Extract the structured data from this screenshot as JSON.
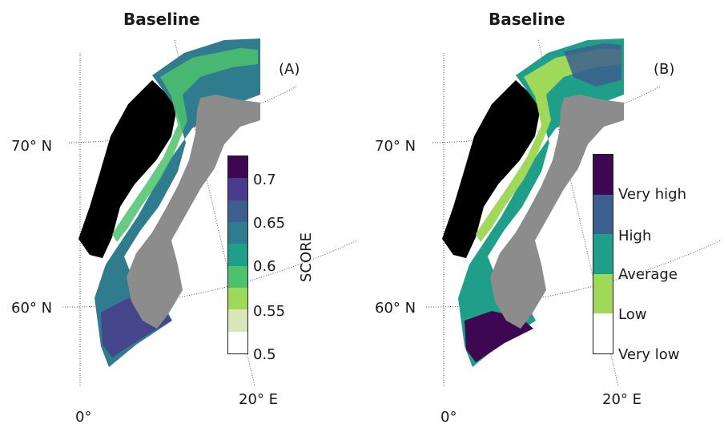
{
  "panels": [
    {
      "title": "Baseline",
      "label": "(A)",
      "lat_labels": [
        "70° N",
        "60° N"
      ],
      "lon_labels": [
        "0°",
        "20° E"
      ],
      "colorbar": {
        "title": "SCORE",
        "ticks": [
          "0.7",
          "0.65",
          "0.6",
          "0.55",
          "0.5"
        ],
        "colors": [
          "#3e0751",
          "#483c8a",
          "#3b5f8e",
          "#2e7c8d",
          "#1f9e89",
          "#4cc26c",
          "#a0d85a",
          "#d8e6b8",
          "#ffffff"
        ]
      }
    },
    {
      "title": "Baseline",
      "label": "(B)",
      "lat_labels": [
        "70° N",
        "60° N"
      ],
      "lon_labels": [
        "0°",
        "20° E"
      ],
      "colorbar": {
        "ticks": [
          "Very high",
          "High",
          "Average",
          "Low",
          "Very low"
        ],
        "colors": [
          "#3e0751",
          "#3b5f8e",
          "#1f9e89",
          "#a0d85a",
          "#ffffff"
        ]
      }
    }
  ],
  "colors": {
    "land": "#8c8c8c",
    "masked": "#000000",
    "grid": "#555555"
  }
}
